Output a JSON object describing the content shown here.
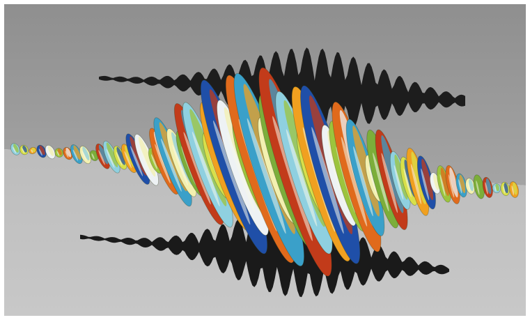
{
  "scene": {
    "subject": "3d-waveform-visualization",
    "colors": {
      "wall": "#9b9b9b",
      "wall_edge": "#b0b0b0",
      "floor": "#c3c3c3",
      "shadow": "#1c1c1c",
      "palette": [
        "#1f4fa8",
        "#3aa0c9",
        "#8fd0e0",
        "#eef2f4",
        "#f3f0b0",
        "#d8e04a",
        "#9cc43d",
        "#7cae3a",
        "#f0a020",
        "#e06a1c",
        "#c23b1a"
      ]
    },
    "waveform": {
      "cycles": 16,
      "components": [
        "ribbon-body",
        "wall-shadow",
        "floor-shadow"
      ]
    }
  }
}
